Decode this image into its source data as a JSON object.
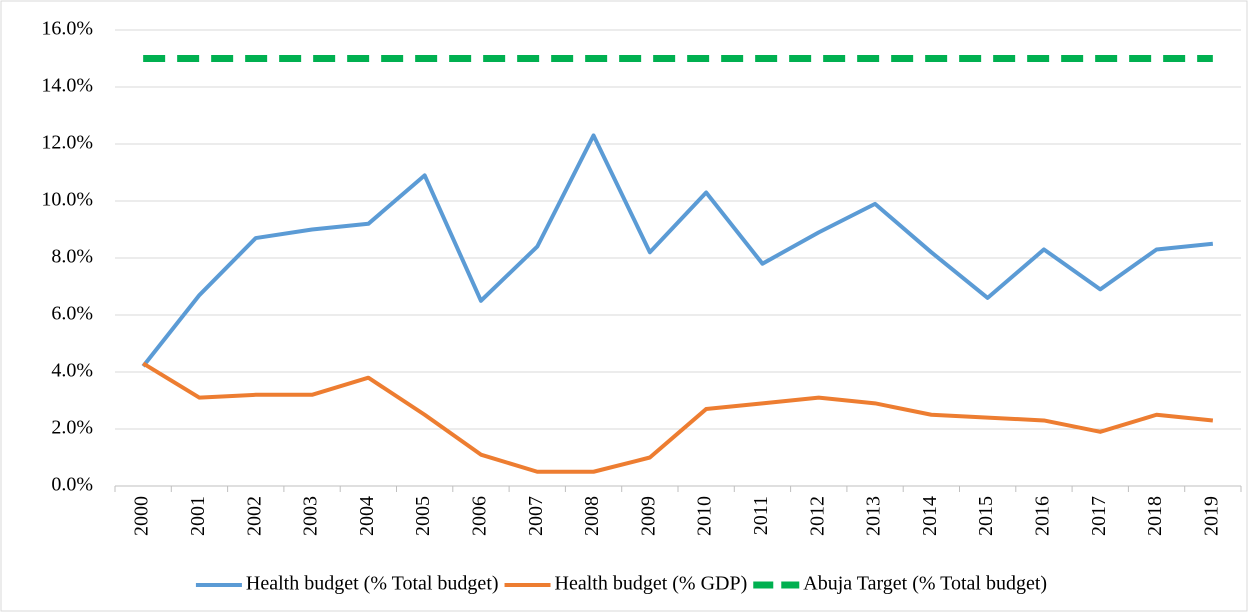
{
  "chart_data": {
    "type": "line",
    "categories": [
      "2000",
      "2001",
      "2002",
      "2003",
      "2004",
      "2005",
      "2006",
      "2007",
      "2008",
      "2009",
      "2010",
      "2011",
      "2012",
      "2013",
      "2014",
      "2015",
      "2016",
      "2017",
      "2018",
      "2019"
    ],
    "series": [
      {
        "name": "Health budget (% Total budget)",
        "color": "#5b9bd5",
        "values": [
          4.2,
          6.7,
          8.7,
          9.0,
          9.2,
          10.9,
          6.5,
          8.4,
          12.3,
          8.2,
          10.3,
          7.8,
          8.9,
          9.9,
          8.2,
          6.6,
          8.3,
          6.9,
          8.3,
          8.5
        ]
      },
      {
        "name": "Health budget (% GDP)",
        "color": "#ed7d31",
        "values": [
          4.3,
          3.1,
          3.2,
          3.2,
          3.8,
          2.5,
          1.1,
          0.5,
          0.5,
          1.0,
          2.7,
          2.9,
          3.1,
          2.9,
          2.5,
          2.4,
          2.3,
          1.9,
          2.5,
          2.3
        ]
      },
      {
        "name": "Abuja Target (% Total budget)",
        "color": "#00b050",
        "dashed": true,
        "values": [
          15,
          15,
          15,
          15,
          15,
          15,
          15,
          15,
          15,
          15,
          15,
          15,
          15,
          15,
          15,
          15,
          15,
          15,
          15,
          15
        ]
      }
    ],
    "ylim": [
      0,
      16
    ],
    "yticks": [
      {
        "value": 0,
        "label": "0.0%"
      },
      {
        "value": 2,
        "label": "2.0%"
      },
      {
        "value": 4,
        "label": "4.0%"
      },
      {
        "value": 6,
        "label": "6.0%"
      },
      {
        "value": 8,
        "label": "8.0%"
      },
      {
        "value": 10,
        "label": "10.0%"
      },
      {
        "value": 12,
        "label": "12.0%"
      },
      {
        "value": 14,
        "label": "14.0%"
      },
      {
        "value": 16,
        "label": "16.0%"
      }
    ],
    "grid": true,
    "legend": "bottom"
  }
}
